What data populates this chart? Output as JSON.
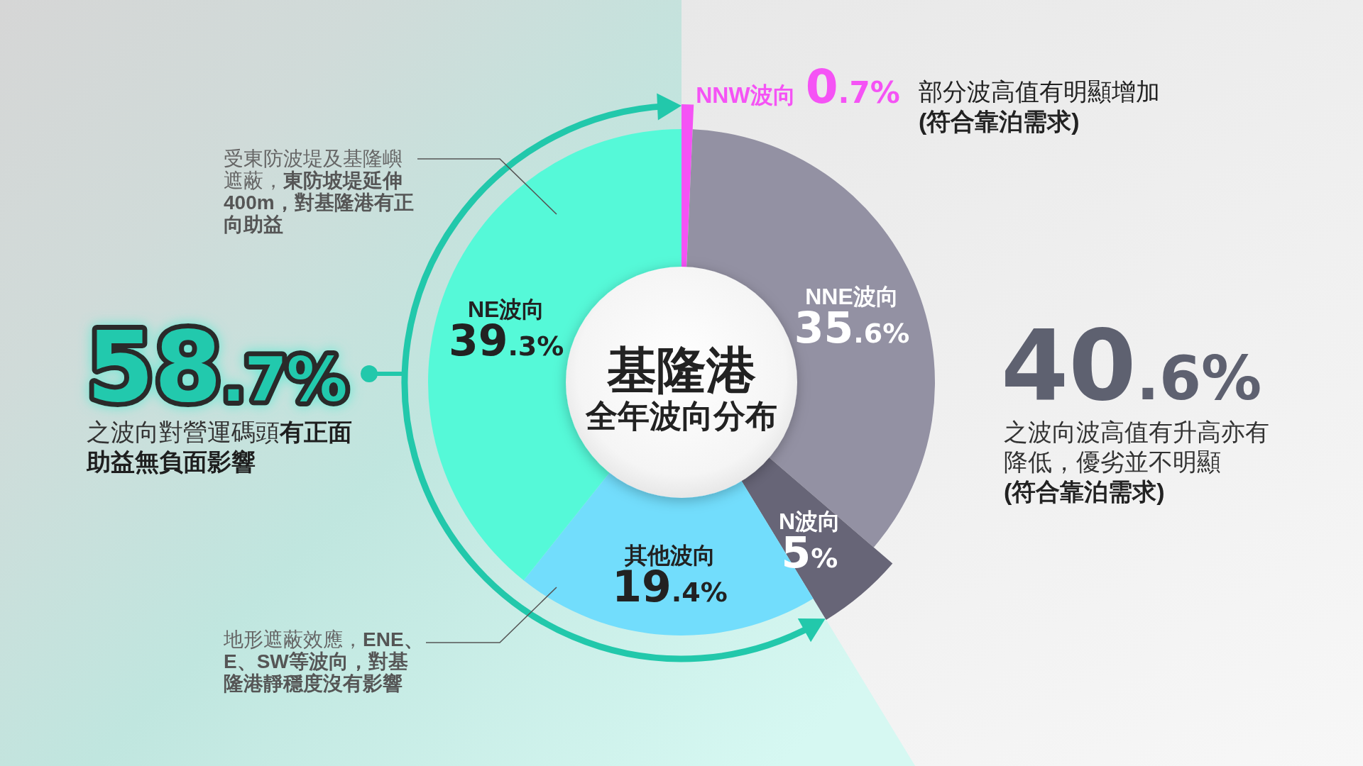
{
  "chart_data": {
    "type": "donut",
    "title": "基隆港",
    "subtitle": "全年波向分布",
    "categories": [
      "NNW波向",
      "NNE波向",
      "N波向",
      "其他波向",
      "NE波向"
    ],
    "values": [
      0.7,
      35.6,
      5,
      19.4,
      39.3
    ],
    "colors": [
      "#f553f5",
      "#9391a3",
      "#676577",
      "#72ddfc",
      "#55f9d8"
    ],
    "value_labels": [
      "0.7%",
      "35.6%",
      "5%",
      "19.4%",
      "39.3%"
    ],
    "annotations": [
      "58.7%",
      "之波向對營運碼頭**有正面助益無負面影響**",
      "40.6%",
      "之波向波高值有升高亦有降低，優劣並不明顯",
      "(符合靠泊需求)",
      "部分波高值有明顯增加",
      "(符合靠泊需求)",
      "受東防波堤及基隆嶼遮蔽，**東防坡堤延伸400m，對基隆港有正向助益**",
      "地形遮蔽效應，**ENE、E、SW等波向，對基隆港靜穩度沒有影響**"
    ]
  }
}
